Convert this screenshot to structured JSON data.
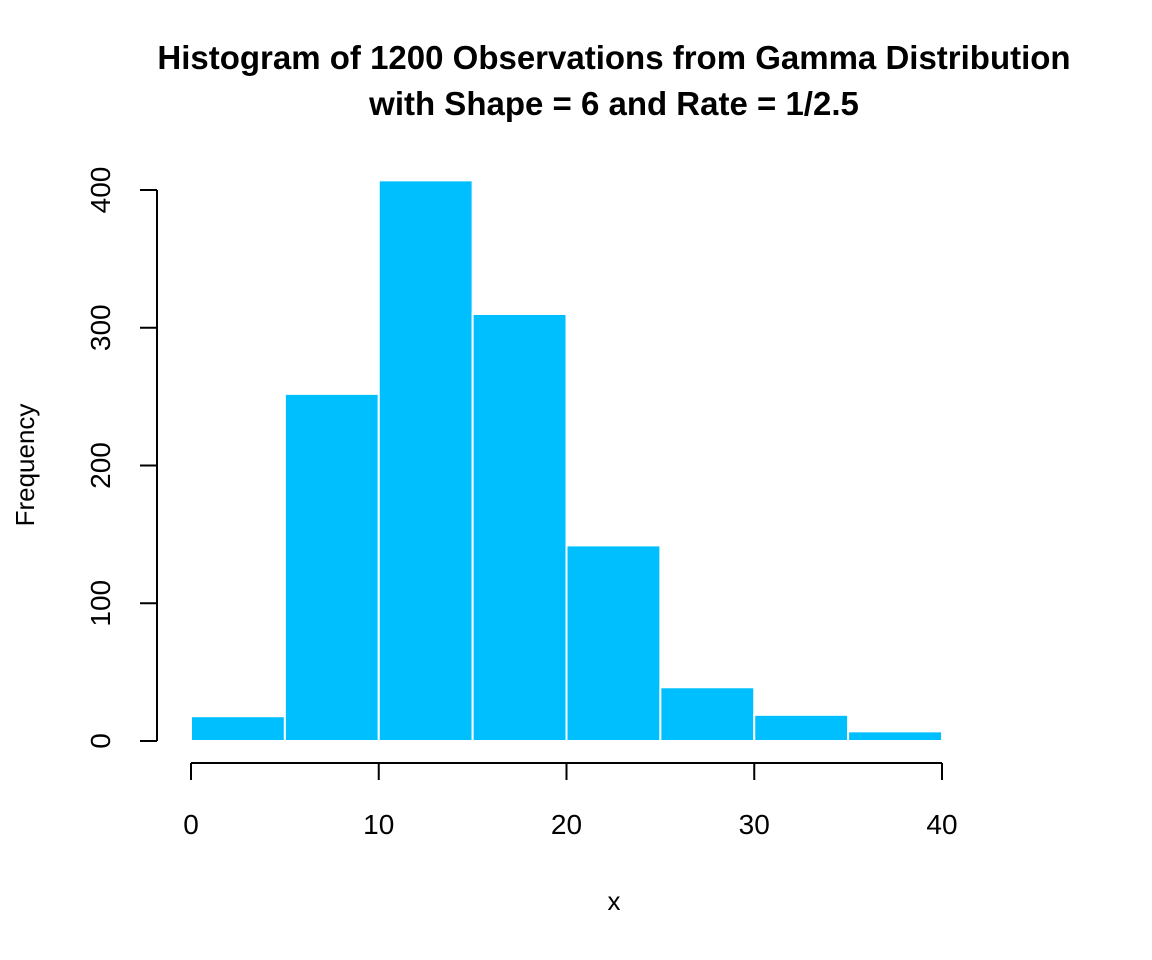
{
  "chart_data": {
    "type": "bar",
    "title": [
      "Histogram of 1200 Observations from Gamma Distribution",
      "with Shape = 6 and Rate = 1/2.5"
    ],
    "xlabel": "x",
    "ylabel": "Frequency",
    "bins": [
      [
        0,
        5
      ],
      [
        5,
        10
      ],
      [
        10,
        15
      ],
      [
        15,
        20
      ],
      [
        20,
        25
      ],
      [
        25,
        30
      ],
      [
        30,
        35
      ],
      [
        35,
        40
      ]
    ],
    "values": [
      18,
      252,
      407,
      310,
      142,
      39,
      19,
      7
    ],
    "xticks": [
      0,
      10,
      20,
      30,
      40
    ],
    "yticks": [
      0,
      100,
      200,
      300,
      400
    ],
    "xlim": [
      0,
      40
    ],
    "ylim": [
      0,
      400
    ],
    "bar_color": "#00BFFF",
    "bar_border_color": "#FFFFFF",
    "grid": false
  }
}
